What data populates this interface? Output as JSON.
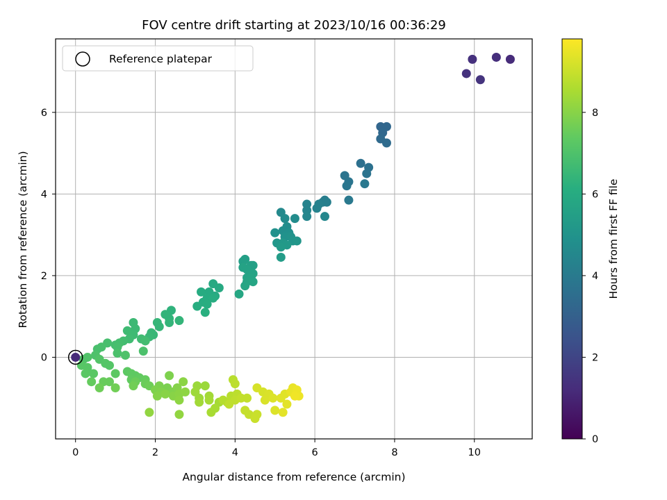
{
  "chart_data": {
    "type": "scatter",
    "title": "FOV centre drift starting at 2023/10/16 00:36:29",
    "xlabel": "Angular distance from reference (arcmin)",
    "ylabel": "Rotation from reference (arcmin)",
    "xlim": [
      -0.5,
      11.45
    ],
    "ylim": [
      -2.0,
      7.8
    ],
    "xticks": [
      0,
      2,
      4,
      6,
      8,
      10
    ],
    "yticks": [
      0,
      2,
      4,
      6
    ],
    "grid": true,
    "legend": {
      "entries": [
        "Reference platepar"
      ],
      "placement": "upper-left"
    },
    "colorbar": {
      "label": "Hours from first FF file",
      "range": [
        0,
        9.8
      ],
      "ticks": [
        0,
        2,
        4,
        6,
        8
      ],
      "colormap": "viridis"
    },
    "reference_point": {
      "x": 0,
      "y": 0
    },
    "points": [
      {
        "x": 10.9,
        "y": 7.3,
        "c": 1.2
      },
      {
        "x": 10.55,
        "y": 7.35,
        "c": 1.3
      },
      {
        "x": 9.95,
        "y": 7.3,
        "c": 1.35
      },
      {
        "x": 9.8,
        "y": 6.95,
        "c": 1.4
      },
      {
        "x": 10.15,
        "y": 6.8,
        "c": 1.45
      },
      {
        "x": 7.65,
        "y": 5.65,
        "c": 3.2
      },
      {
        "x": 7.8,
        "y": 5.65,
        "c": 3.25
      },
      {
        "x": 7.7,
        "y": 5.5,
        "c": 3.3
      },
      {
        "x": 7.65,
        "y": 5.35,
        "c": 3.35
      },
      {
        "x": 7.8,
        "y": 5.25,
        "c": 3.4
      },
      {
        "x": 7.15,
        "y": 4.75,
        "c": 3.6
      },
      {
        "x": 7.35,
        "y": 4.65,
        "c": 3.65
      },
      {
        "x": 7.3,
        "y": 4.5,
        "c": 3.7
      },
      {
        "x": 6.75,
        "y": 4.45,
        "c": 3.75
      },
      {
        "x": 6.85,
        "y": 4.3,
        "c": 3.8
      },
      {
        "x": 6.8,
        "y": 4.2,
        "c": 3.85
      },
      {
        "x": 7.25,
        "y": 4.25,
        "c": 3.9
      },
      {
        "x": 6.85,
        "y": 3.85,
        "c": 3.95
      },
      {
        "x": 6.25,
        "y": 3.85,
        "c": 4.1
      },
      {
        "x": 6.2,
        "y": 3.8,
        "c": 4.15
      },
      {
        "x": 6.3,
        "y": 3.8,
        "c": 4.2
      },
      {
        "x": 6.1,
        "y": 3.75,
        "c": 4.25
      },
      {
        "x": 6.05,
        "y": 3.65,
        "c": 4.3
      },
      {
        "x": 5.8,
        "y": 3.75,
        "c": 4.35
      },
      {
        "x": 5.8,
        "y": 3.6,
        "c": 4.4
      },
      {
        "x": 5.8,
        "y": 3.45,
        "c": 4.45
      },
      {
        "x": 6.25,
        "y": 3.45,
        "c": 4.5
      },
      {
        "x": 5.15,
        "y": 3.55,
        "c": 4.6
      },
      {
        "x": 5.25,
        "y": 3.4,
        "c": 4.65
      },
      {
        "x": 5.5,
        "y": 3.4,
        "c": 4.7
      },
      {
        "x": 5.3,
        "y": 3.2,
        "c": 4.75
      },
      {
        "x": 5.2,
        "y": 3.1,
        "c": 4.8
      },
      {
        "x": 5.35,
        "y": 3.05,
        "c": 4.85
      },
      {
        "x": 5.0,
        "y": 3.05,
        "c": 4.9
      },
      {
        "x": 5.25,
        "y": 2.95,
        "c": 4.95
      },
      {
        "x": 5.4,
        "y": 2.95,
        "c": 5.0
      },
      {
        "x": 5.45,
        "y": 2.85,
        "c": 5.05
      },
      {
        "x": 5.55,
        "y": 2.85,
        "c": 5.1
      },
      {
        "x": 5.05,
        "y": 2.8,
        "c": 5.15
      },
      {
        "x": 5.2,
        "y": 2.8,
        "c": 5.2
      },
      {
        "x": 5.3,
        "y": 2.75,
        "c": 5.25
      },
      {
        "x": 5.15,
        "y": 2.7,
        "c": 5.3
      },
      {
        "x": 5.15,
        "y": 2.45,
        "c": 5.35
      },
      {
        "x": 4.2,
        "y": 2.35,
        "c": 5.5
      },
      {
        "x": 4.25,
        "y": 2.4,
        "c": 5.5
      },
      {
        "x": 4.4,
        "y": 2.25,
        "c": 5.55
      },
      {
        "x": 4.45,
        "y": 2.25,
        "c": 5.55
      },
      {
        "x": 4.2,
        "y": 2.2,
        "c": 5.6
      },
      {
        "x": 4.3,
        "y": 2.15,
        "c": 5.6
      },
      {
        "x": 4.45,
        "y": 2.05,
        "c": 5.65
      },
      {
        "x": 4.3,
        "y": 1.95,
        "c": 5.65
      },
      {
        "x": 4.4,
        "y": 1.95,
        "c": 5.7
      },
      {
        "x": 4.3,
        "y": 1.85,
        "c": 5.7
      },
      {
        "x": 4.45,
        "y": 1.85,
        "c": 5.75
      },
      {
        "x": 4.25,
        "y": 1.75,
        "c": 5.75
      },
      {
        "x": 4.1,
        "y": 1.55,
        "c": 5.8
      },
      {
        "x": 3.45,
        "y": 1.8,
        "c": 5.9
      },
      {
        "x": 3.6,
        "y": 1.7,
        "c": 5.9
      },
      {
        "x": 3.35,
        "y": 1.6,
        "c": 5.95
      },
      {
        "x": 3.5,
        "y": 1.5,
        "c": 5.95
      },
      {
        "x": 3.3,
        "y": 1.45,
        "c": 6.0
      },
      {
        "x": 3.15,
        "y": 1.6,
        "c": 6.0
      },
      {
        "x": 3.45,
        "y": 1.45,
        "c": 6.05
      },
      {
        "x": 3.2,
        "y": 1.35,
        "c": 6.05
      },
      {
        "x": 3.3,
        "y": 1.3,
        "c": 6.1
      },
      {
        "x": 3.05,
        "y": 1.25,
        "c": 6.1
      },
      {
        "x": 3.25,
        "y": 1.1,
        "c": 6.15
      },
      {
        "x": 2.4,
        "y": 1.15,
        "c": 6.3
      },
      {
        "x": 2.25,
        "y": 1.05,
        "c": 6.35
      },
      {
        "x": 2.35,
        "y": 0.95,
        "c": 6.35
      },
      {
        "x": 2.6,
        "y": 0.9,
        "c": 6.4
      },
      {
        "x": 2.35,
        "y": 0.85,
        "c": 6.4
      },
      {
        "x": 2.05,
        "y": 0.85,
        "c": 6.45
      },
      {
        "x": 2.1,
        "y": 0.75,
        "c": 6.45
      },
      {
        "x": 1.9,
        "y": 0.6,
        "c": 6.5
      },
      {
        "x": 1.95,
        "y": 0.55,
        "c": 6.5
      },
      {
        "x": 1.85,
        "y": 0.5,
        "c": 6.55
      },
      {
        "x": 1.45,
        "y": 0.85,
        "c": 6.6
      },
      {
        "x": 1.5,
        "y": 0.7,
        "c": 6.6
      },
      {
        "x": 1.3,
        "y": 0.65,
        "c": 6.65
      },
      {
        "x": 1.45,
        "y": 0.55,
        "c": 6.65
      },
      {
        "x": 1.35,
        "y": 0.45,
        "c": 6.7
      },
      {
        "x": 1.65,
        "y": 0.45,
        "c": 6.7
      },
      {
        "x": 1.75,
        "y": 0.4,
        "c": 6.75
      },
      {
        "x": 1.2,
        "y": 0.4,
        "c": 6.75
      },
      {
        "x": 1.1,
        "y": 0.35,
        "c": 6.8
      },
      {
        "x": 1.0,
        "y": 0.3,
        "c": 6.8
      },
      {
        "x": 1.05,
        "y": 0.25,
        "c": 6.85
      },
      {
        "x": 0.8,
        "y": 0.35,
        "c": 6.85
      },
      {
        "x": 0.65,
        "y": 0.25,
        "c": 6.9
      },
      {
        "x": 0.55,
        "y": 0.2,
        "c": 6.9
      },
      {
        "x": 1.7,
        "y": 0.15,
        "c": 6.95
      },
      {
        "x": 1.05,
        "y": 0.1,
        "c": 6.95
      },
      {
        "x": 1.25,
        "y": 0.05,
        "c": 7.0
      },
      {
        "x": 0.5,
        "y": 0.05,
        "c": 7.0
      },
      {
        "x": 0.3,
        "y": 0.0,
        "c": 7.05
      },
      {
        "x": 0.2,
        "y": -0.05,
        "c": 7.05
      },
      {
        "x": 0.6,
        "y": -0.05,
        "c": 7.1
      },
      {
        "x": 0.75,
        "y": -0.15,
        "c": 7.15
      },
      {
        "x": 0.85,
        "y": -0.2,
        "c": 7.15
      },
      {
        "x": 0.15,
        "y": -0.2,
        "c": 7.2
      },
      {
        "x": 0.3,
        "y": -0.25,
        "c": 7.2
      },
      {
        "x": 0.25,
        "y": -0.4,
        "c": 7.25
      },
      {
        "x": 0.45,
        "y": -0.4,
        "c": 7.25
      },
      {
        "x": 1.0,
        "y": -0.4,
        "c": 7.3
      },
      {
        "x": 1.3,
        "y": -0.35,
        "c": 7.3
      },
      {
        "x": 1.4,
        "y": -0.4,
        "c": 7.35
      },
      {
        "x": 1.5,
        "y": -0.45,
        "c": 7.35
      },
      {
        "x": 1.6,
        "y": -0.5,
        "c": 7.4
      },
      {
        "x": 1.4,
        "y": -0.55,
        "c": 7.4
      },
      {
        "x": 1.75,
        "y": -0.55,
        "c": 7.45
      },
      {
        "x": 0.4,
        "y": -0.6,
        "c": 7.45
      },
      {
        "x": 0.7,
        "y": -0.6,
        "c": 7.5
      },
      {
        "x": 0.85,
        "y": -0.6,
        "c": 7.5
      },
      {
        "x": 1.5,
        "y": -0.6,
        "c": 7.55
      },
      {
        "x": 1.75,
        "y": -0.65,
        "c": 7.55
      },
      {
        "x": 1.85,
        "y": -0.7,
        "c": 7.6
      },
      {
        "x": 0.6,
        "y": -0.75,
        "c": 7.6
      },
      {
        "x": 1.0,
        "y": -0.75,
        "c": 7.65
      },
      {
        "x": 1.45,
        "y": -0.7,
        "c": 7.65
      },
      {
        "x": 2.1,
        "y": -0.7,
        "c": 7.8
      },
      {
        "x": 2.3,
        "y": -0.75,
        "c": 7.8
      },
      {
        "x": 2.35,
        "y": -0.45,
        "c": 7.85
      },
      {
        "x": 2.0,
        "y": -0.8,
        "c": 7.85
      },
      {
        "x": 2.15,
        "y": -0.85,
        "c": 7.9
      },
      {
        "x": 2.45,
        "y": -0.85,
        "c": 7.9
      },
      {
        "x": 2.55,
        "y": -0.75,
        "c": 7.95
      },
      {
        "x": 2.05,
        "y": -0.95,
        "c": 7.95
      },
      {
        "x": 2.25,
        "y": -0.9,
        "c": 8.0
      },
      {
        "x": 2.45,
        "y": -0.95,
        "c": 8.0
      },
      {
        "x": 2.6,
        "y": -0.9,
        "c": 8.05
      },
      {
        "x": 2.7,
        "y": -0.6,
        "c": 8.05
      },
      {
        "x": 2.75,
        "y": -0.85,
        "c": 8.1
      },
      {
        "x": 2.6,
        "y": -1.05,
        "c": 8.1
      },
      {
        "x": 1.85,
        "y": -1.35,
        "c": 8.15
      },
      {
        "x": 2.6,
        "y": -1.4,
        "c": 8.15
      },
      {
        "x": 3.05,
        "y": -0.7,
        "c": 8.3
      },
      {
        "x": 3.25,
        "y": -0.7,
        "c": 8.3
      },
      {
        "x": 3.0,
        "y": -0.85,
        "c": 8.35
      },
      {
        "x": 3.1,
        "y": -1.0,
        "c": 8.35
      },
      {
        "x": 3.1,
        "y": -1.1,
        "c": 8.4
      },
      {
        "x": 3.35,
        "y": -0.95,
        "c": 8.4
      },
      {
        "x": 3.35,
        "y": -1.05,
        "c": 8.45
      },
      {
        "x": 3.6,
        "y": -1.1,
        "c": 8.45
      },
      {
        "x": 3.4,
        "y": -1.35,
        "c": 8.5
      },
      {
        "x": 3.5,
        "y": -1.25,
        "c": 8.5
      },
      {
        "x": 3.7,
        "y": -1.05,
        "c": 8.7
      },
      {
        "x": 3.8,
        "y": -1.1,
        "c": 8.7
      },
      {
        "x": 3.9,
        "y": -0.95,
        "c": 8.75
      },
      {
        "x": 3.95,
        "y": -0.55,
        "c": 8.75
      },
      {
        "x": 4.0,
        "y": -0.65,
        "c": 8.8
      },
      {
        "x": 4.05,
        "y": -0.9,
        "c": 8.8
      },
      {
        "x": 4.0,
        "y": -1.05,
        "c": 8.85
      },
      {
        "x": 3.85,
        "y": -1.15,
        "c": 8.85
      },
      {
        "x": 4.15,
        "y": -1.0,
        "c": 8.9
      },
      {
        "x": 4.3,
        "y": -1.0,
        "c": 8.9
      },
      {
        "x": 4.25,
        "y": -1.3,
        "c": 8.95
      },
      {
        "x": 4.35,
        "y": -1.4,
        "c": 8.95
      },
      {
        "x": 4.55,
        "y": -1.4,
        "c": 9.0
      },
      {
        "x": 4.5,
        "y": -1.5,
        "c": 9.0
      },
      {
        "x": 4.55,
        "y": -0.75,
        "c": 9.2
      },
      {
        "x": 4.7,
        "y": -0.85,
        "c": 9.2
      },
      {
        "x": 4.85,
        "y": -0.9,
        "c": 9.25
      },
      {
        "x": 4.75,
        "y": -1.05,
        "c": 9.25
      },
      {
        "x": 4.95,
        "y": -1.0,
        "c": 9.3
      },
      {
        "x": 5.0,
        "y": -1.3,
        "c": 9.3
      },
      {
        "x": 5.15,
        "y": -1.0,
        "c": 9.35
      },
      {
        "x": 5.25,
        "y": -0.9,
        "c": 9.35
      },
      {
        "x": 5.3,
        "y": -1.15,
        "c": 9.4
      },
      {
        "x": 5.2,
        "y": -1.35,
        "c": 9.4
      },
      {
        "x": 5.4,
        "y": -0.85,
        "c": 9.5
      },
      {
        "x": 5.45,
        "y": -0.75,
        "c": 9.5
      },
      {
        "x": 5.55,
        "y": -0.8,
        "c": 9.55
      },
      {
        "x": 5.6,
        "y": -0.95,
        "c": 9.55
      },
      {
        "x": 5.5,
        "y": -0.95,
        "c": 9.6
      }
    ]
  }
}
